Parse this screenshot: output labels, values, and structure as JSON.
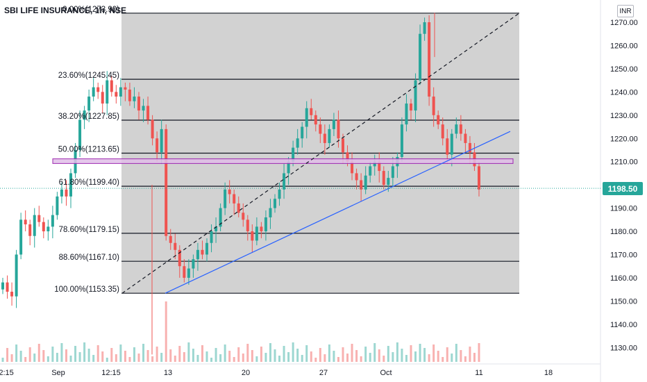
{
  "header": {
    "title": "SBI LIFE INSURANCE, 1h, NSE",
    "currency": "INR"
  },
  "last_price": "1198.50",
  "colors": {
    "up": "#26a69a",
    "down": "#ef5350",
    "fib_zone": "#cdcdcd",
    "trend": "#2962ff",
    "resistance": "#e1bee7"
  },
  "chart_data": {
    "type": "candlestick",
    "title": "SBI LIFE INSURANCE, 1h, NSE",
    "ylim": [
      1123,
      1280
    ],
    "y_ticks": [
      "1270.00",
      "1260.00",
      "1250.00",
      "1240.00",
      "1230.00",
      "1220.00",
      "1210.00",
      "1200.00",
      "1190.00",
      "1180.00",
      "1170.00",
      "1160.00",
      "1150.00",
      "1140.00",
      "1130.00"
    ],
    "x_ticks": [
      "12:15",
      "Sep",
      "12:15",
      "13",
      "20",
      "27",
      "Oct",
      "11",
      "18"
    ],
    "fib_levels": [
      {
        "label": "0.00%(1273.90)",
        "value": 1273.9
      },
      {
        "label": "23.60%(1245.45)",
        "value": 1245.45
      },
      {
        "label": "38.20%(1227.85)",
        "value": 1227.85
      },
      {
        "label": "50.00%(1213.65)",
        "value": 1213.65
      },
      {
        "label": "61.80%(1199.40)",
        "value": 1199.4
      },
      {
        "label": "78.60%(1179.15)",
        "value": 1179.15
      },
      {
        "label": "88.60%(1167.10)",
        "value": 1167.1
      },
      {
        "label": "100.00%(1153.35)",
        "value": 1153.35
      }
    ],
    "resistance_zone": [
      1209.2,
      1211.2
    ],
    "closes": [
      1158,
      1154,
      1152,
      1170,
      1185,
      1183,
      1178,
      1187,
      1184,
      1180,
      1182,
      1187,
      1195,
      1198,
      1195,
      1205,
      1215,
      1228,
      1232,
      1238,
      1242,
      1240,
      1235,
      1245,
      1240,
      1238,
      1242,
      1241,
      1236,
      1238,
      1232,
      1234,
      1228,
      1220,
      1214,
      1224,
      1178,
      1175,
      1172,
      1165,
      1160,
      1164,
      1168,
      1172,
      1170,
      1175,
      1180,
      1182,
      1190,
      1198,
      1196,
      1192,
      1188,
      1185,
      1180,
      1176,
      1182,
      1180,
      1186,
      1190,
      1194,
      1198,
      1205,
      1210,
      1216,
      1220,
      1225,
      1233,
      1230,
      1226,
      1222,
      1218,
      1224,
      1228,
      1220,
      1214,
      1210,
      1205,
      1202,
      1198,
      1204,
      1208,
      1210,
      1206,
      1200,
      1203,
      1208,
      1212,
      1226,
      1235,
      1232,
      1245,
      1265,
      1270,
      1238,
      1230,
      1226,
      1220,
      1213,
      1222,
      1226,
      1222,
      1218,
      1214,
      1208,
      1198
    ],
    "volume_note": "volume bars along bottom"
  }
}
